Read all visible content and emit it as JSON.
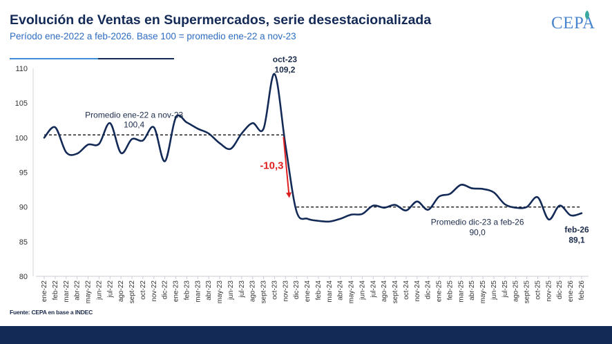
{
  "header": {
    "title": "Evolución de Ventas en Supermercados, serie desestacionalizada",
    "subtitle": "Período ene-2022 a feb-2026. Base 100 = promedio ene-22 a nov-23",
    "logo_text": "CEPA"
  },
  "footer": {
    "source": "Fuente: CEPA en base a INDEC"
  },
  "colors": {
    "line": "#132a57",
    "accent_blue": "#3d8ed9",
    "arrow": "#e02020",
    "footer_bar": "#132a57"
  },
  "chart_data": {
    "type": "line",
    "title": "",
    "xlabel": "",
    "ylabel": "",
    "ylim": [
      80,
      110
    ],
    "yticks": [
      80,
      85,
      90,
      95,
      100,
      105,
      110
    ],
    "grid": false,
    "categories": [
      "ene-22",
      "feb-22",
      "mar-22",
      "abr-22",
      "may-22",
      "jun-22",
      "jul-22",
      "ago-22",
      "sept-22",
      "oct-22",
      "nov-22",
      "dic-22",
      "ene-23",
      "feb-23",
      "mar-23",
      "abr-23",
      "may-23",
      "jun-23",
      "jul-23",
      "ago-23",
      "sept-23",
      "oct-23",
      "nov-23",
      "dic-23",
      "ene-24",
      "feb-24",
      "mar-24",
      "abr-24",
      "may-24",
      "jun-24",
      "jul-24",
      "ago-24",
      "sept-24",
      "oct-24",
      "nov-24",
      "dic-24",
      "ene-25",
      "feb-25",
      "mar-25",
      "abr-25",
      "may-25",
      "jun-25",
      "jul-25",
      "ago-25",
      "sept-25",
      "oct-25",
      "nov-25",
      "dic-25",
      "ene-26",
      "feb-26"
    ],
    "values": [
      100.0,
      101.5,
      97.9,
      97.7,
      99.0,
      99.1,
      102.1,
      97.8,
      99.8,
      99.6,
      101.5,
      96.6,
      102.9,
      102.2,
      101.3,
      100.6,
      99.2,
      98.4,
      100.6,
      102.1,
      101.3,
      109.2,
      98.9,
      89.4,
      88.3,
      88.0,
      87.9,
      88.3,
      88.9,
      89.0,
      90.2,
      89.9,
      90.3,
      89.5,
      90.8,
      89.6,
      91.5,
      91.9,
      93.2,
      92.7,
      92.6,
      92.1,
      90.4,
      89.9,
      90.0,
      91.4,
      88.2,
      90.2,
      88.8,
      89.1
    ],
    "reference_lines": [
      {
        "label": "Promedio ene-22 a nov-23",
        "value": 100.4,
        "value_label": "100,4",
        "from": "ene-22",
        "to": "nov-23"
      },
      {
        "label": "Promedio dic-23 a feb-26",
        "value": 90.0,
        "value_label": "90,0",
        "from": "dic-23",
        "to": "feb-26"
      }
    ],
    "annotations": [
      {
        "label": "oct-23",
        "value_label": "109,2",
        "at": "oct-23"
      },
      {
        "label": "feb-26",
        "value_label": "89,1",
        "at": "feb-26"
      },
      {
        "label": "-10,3",
        "type": "drop-arrow",
        "from": "oct-23",
        "to": "dic-23"
      }
    ]
  }
}
